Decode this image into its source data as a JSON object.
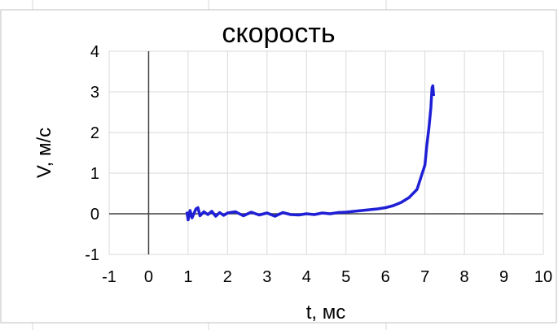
{
  "chart_data": {
    "type": "line",
    "title": "скорость",
    "x_label": "t, мс",
    "y_label": "V, м/с",
    "xlim": [
      -1,
      10
    ],
    "ylim": [
      -1,
      4
    ],
    "xticks": [
      -1,
      0,
      1,
      2,
      3,
      4,
      5,
      6,
      7,
      8,
      9,
      10
    ],
    "yticks": [
      -1,
      0,
      1,
      2,
      3,
      4
    ],
    "grid": true,
    "series": [
      {
        "color": "#1f1fd6",
        "x": [
          0.97,
          1.0,
          1.05,
          1.1,
          1.2,
          1.25,
          1.3,
          1.4,
          1.5,
          1.6,
          1.7,
          1.8,
          1.9,
          2.0,
          2.2,
          2.4,
          2.6,
          2.8,
          3.0,
          3.2,
          3.4,
          3.6,
          3.8,
          4.0,
          4.2,
          4.4,
          4.6,
          4.8,
          5.0,
          5.2,
          5.4,
          5.6,
          5.8,
          6.0,
          6.2,
          6.4,
          6.6,
          6.8,
          6.9,
          7.0,
          7.05,
          7.1,
          7.15,
          7.18,
          7.2,
          7.22
        ],
        "values": [
          0.05,
          -0.15,
          0.08,
          -0.1,
          0.12,
          0.15,
          -0.05,
          0.05,
          -0.02,
          0.06,
          -0.06,
          0.03,
          -0.04,
          0.02,
          0.05,
          -0.05,
          0.04,
          -0.03,
          0.02,
          -0.06,
          0.03,
          -0.02,
          -0.03,
          0.0,
          -0.02,
          0.02,
          0.0,
          0.03,
          0.04,
          0.06,
          0.08,
          0.1,
          0.12,
          0.15,
          0.2,
          0.28,
          0.4,
          0.6,
          0.9,
          1.2,
          1.7,
          2.1,
          2.6,
          3.1,
          3.15,
          2.9
        ]
      }
    ]
  }
}
